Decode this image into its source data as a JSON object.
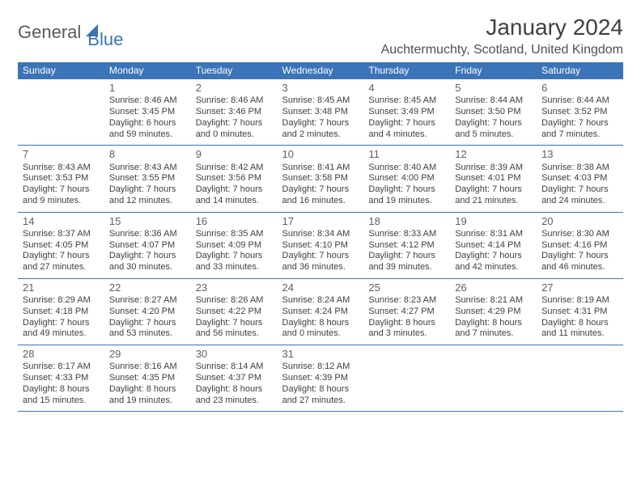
{
  "logo": {
    "text1": "General",
    "text2": "Blue"
  },
  "title": "January 2024",
  "location": "Auchtermuchty, Scotland, United Kingdom",
  "colors": {
    "accent": "#3b74b8",
    "text": "#404040",
    "bg": "#ffffff"
  },
  "weekdays": [
    "Sunday",
    "Monday",
    "Tuesday",
    "Wednesday",
    "Thursday",
    "Friday",
    "Saturday"
  ],
  "weeks": [
    [
      null,
      {
        "n": "1",
        "sr": "Sunrise: 8:46 AM",
        "ss": "Sunset: 3:45 PM",
        "d1": "Daylight: 6 hours",
        "d2": "and 59 minutes."
      },
      {
        "n": "2",
        "sr": "Sunrise: 8:46 AM",
        "ss": "Sunset: 3:46 PM",
        "d1": "Daylight: 7 hours",
        "d2": "and 0 minutes."
      },
      {
        "n": "3",
        "sr": "Sunrise: 8:45 AM",
        "ss": "Sunset: 3:48 PM",
        "d1": "Daylight: 7 hours",
        "d2": "and 2 minutes."
      },
      {
        "n": "4",
        "sr": "Sunrise: 8:45 AM",
        "ss": "Sunset: 3:49 PM",
        "d1": "Daylight: 7 hours",
        "d2": "and 4 minutes."
      },
      {
        "n": "5",
        "sr": "Sunrise: 8:44 AM",
        "ss": "Sunset: 3:50 PM",
        "d1": "Daylight: 7 hours",
        "d2": "and 5 minutes."
      },
      {
        "n": "6",
        "sr": "Sunrise: 8:44 AM",
        "ss": "Sunset: 3:52 PM",
        "d1": "Daylight: 7 hours",
        "d2": "and 7 minutes."
      }
    ],
    [
      {
        "n": "7",
        "sr": "Sunrise: 8:43 AM",
        "ss": "Sunset: 3:53 PM",
        "d1": "Daylight: 7 hours",
        "d2": "and 9 minutes."
      },
      {
        "n": "8",
        "sr": "Sunrise: 8:43 AM",
        "ss": "Sunset: 3:55 PM",
        "d1": "Daylight: 7 hours",
        "d2": "and 12 minutes."
      },
      {
        "n": "9",
        "sr": "Sunrise: 8:42 AM",
        "ss": "Sunset: 3:56 PM",
        "d1": "Daylight: 7 hours",
        "d2": "and 14 minutes."
      },
      {
        "n": "10",
        "sr": "Sunrise: 8:41 AM",
        "ss": "Sunset: 3:58 PM",
        "d1": "Daylight: 7 hours",
        "d2": "and 16 minutes."
      },
      {
        "n": "11",
        "sr": "Sunrise: 8:40 AM",
        "ss": "Sunset: 4:00 PM",
        "d1": "Daylight: 7 hours",
        "d2": "and 19 minutes."
      },
      {
        "n": "12",
        "sr": "Sunrise: 8:39 AM",
        "ss": "Sunset: 4:01 PM",
        "d1": "Daylight: 7 hours",
        "d2": "and 21 minutes."
      },
      {
        "n": "13",
        "sr": "Sunrise: 8:38 AM",
        "ss": "Sunset: 4:03 PM",
        "d1": "Daylight: 7 hours",
        "d2": "and 24 minutes."
      }
    ],
    [
      {
        "n": "14",
        "sr": "Sunrise: 8:37 AM",
        "ss": "Sunset: 4:05 PM",
        "d1": "Daylight: 7 hours",
        "d2": "and 27 minutes."
      },
      {
        "n": "15",
        "sr": "Sunrise: 8:36 AM",
        "ss": "Sunset: 4:07 PM",
        "d1": "Daylight: 7 hours",
        "d2": "and 30 minutes."
      },
      {
        "n": "16",
        "sr": "Sunrise: 8:35 AM",
        "ss": "Sunset: 4:09 PM",
        "d1": "Daylight: 7 hours",
        "d2": "and 33 minutes."
      },
      {
        "n": "17",
        "sr": "Sunrise: 8:34 AM",
        "ss": "Sunset: 4:10 PM",
        "d1": "Daylight: 7 hours",
        "d2": "and 36 minutes."
      },
      {
        "n": "18",
        "sr": "Sunrise: 8:33 AM",
        "ss": "Sunset: 4:12 PM",
        "d1": "Daylight: 7 hours",
        "d2": "and 39 minutes."
      },
      {
        "n": "19",
        "sr": "Sunrise: 8:31 AM",
        "ss": "Sunset: 4:14 PM",
        "d1": "Daylight: 7 hours",
        "d2": "and 42 minutes."
      },
      {
        "n": "20",
        "sr": "Sunrise: 8:30 AM",
        "ss": "Sunset: 4:16 PM",
        "d1": "Daylight: 7 hours",
        "d2": "and 46 minutes."
      }
    ],
    [
      {
        "n": "21",
        "sr": "Sunrise: 8:29 AM",
        "ss": "Sunset: 4:18 PM",
        "d1": "Daylight: 7 hours",
        "d2": "and 49 minutes."
      },
      {
        "n": "22",
        "sr": "Sunrise: 8:27 AM",
        "ss": "Sunset: 4:20 PM",
        "d1": "Daylight: 7 hours",
        "d2": "and 53 minutes."
      },
      {
        "n": "23",
        "sr": "Sunrise: 8:26 AM",
        "ss": "Sunset: 4:22 PM",
        "d1": "Daylight: 7 hours",
        "d2": "and 56 minutes."
      },
      {
        "n": "24",
        "sr": "Sunrise: 8:24 AM",
        "ss": "Sunset: 4:24 PM",
        "d1": "Daylight: 8 hours",
        "d2": "and 0 minutes."
      },
      {
        "n": "25",
        "sr": "Sunrise: 8:23 AM",
        "ss": "Sunset: 4:27 PM",
        "d1": "Daylight: 8 hours",
        "d2": "and 3 minutes."
      },
      {
        "n": "26",
        "sr": "Sunrise: 8:21 AM",
        "ss": "Sunset: 4:29 PM",
        "d1": "Daylight: 8 hours",
        "d2": "and 7 minutes."
      },
      {
        "n": "27",
        "sr": "Sunrise: 8:19 AM",
        "ss": "Sunset: 4:31 PM",
        "d1": "Daylight: 8 hours",
        "d2": "and 11 minutes."
      }
    ],
    [
      {
        "n": "28",
        "sr": "Sunrise: 8:17 AM",
        "ss": "Sunset: 4:33 PM",
        "d1": "Daylight: 8 hours",
        "d2": "and 15 minutes."
      },
      {
        "n": "29",
        "sr": "Sunrise: 8:16 AM",
        "ss": "Sunset: 4:35 PM",
        "d1": "Daylight: 8 hours",
        "d2": "and 19 minutes."
      },
      {
        "n": "30",
        "sr": "Sunrise: 8:14 AM",
        "ss": "Sunset: 4:37 PM",
        "d1": "Daylight: 8 hours",
        "d2": "and 23 minutes."
      },
      {
        "n": "31",
        "sr": "Sunrise: 8:12 AM",
        "ss": "Sunset: 4:39 PM",
        "d1": "Daylight: 8 hours",
        "d2": "and 27 minutes."
      },
      null,
      null,
      null
    ]
  ]
}
